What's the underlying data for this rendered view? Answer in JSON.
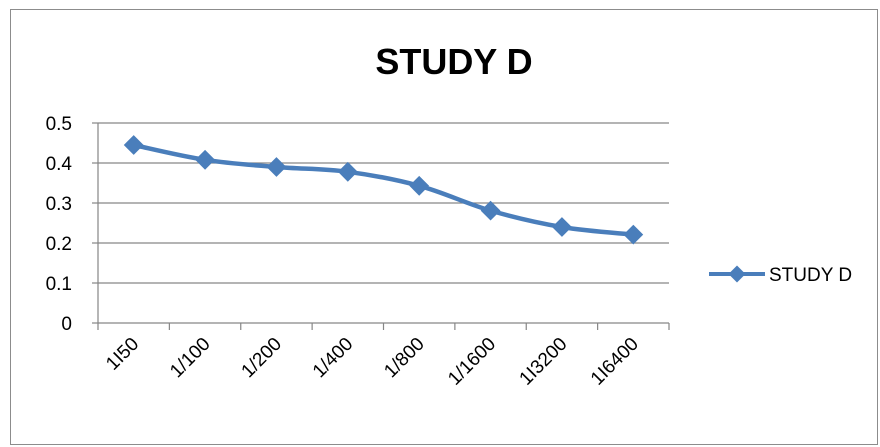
{
  "chart_data": {
    "type": "line",
    "title": "STUDY D",
    "categories": [
      "1I50",
      "1/100",
      "1/200",
      "1/400",
      "1/800",
      "1/1600",
      "1I3200",
      "1I6400"
    ],
    "series": [
      {
        "name": "STUDY D",
        "values": [
          0.445,
          0.408,
          0.39,
          0.378,
          0.343,
          0.281,
          0.24,
          0.221
        ]
      }
    ],
    "ylim": [
      0,
      0.5
    ],
    "yticks": [
      "0",
      "0.1",
      "0.2",
      "0.3",
      "0.4",
      "0.5"
    ],
    "xlabel": "",
    "ylabel": "",
    "grid": true,
    "legend_position": "right",
    "colors": {
      "series": "#4a7ebb",
      "grid": "#868686",
      "axis": "#868686"
    }
  }
}
